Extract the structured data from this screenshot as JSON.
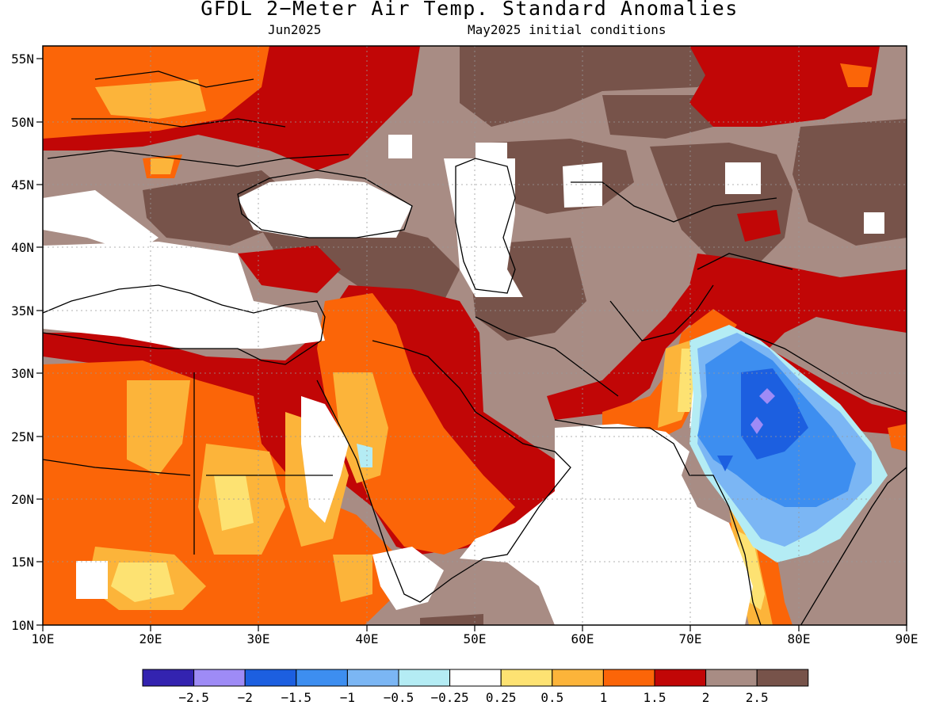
{
  "title": "GFDL 2−Meter Air Temp. Standard Anomalies",
  "subtitle_left": "Jun2025",
  "subtitle_right": "May2025 initial conditions",
  "axes": {
    "lon_ticks": [
      "10E",
      "20E",
      "30E",
      "40E",
      "50E",
      "60E",
      "70E",
      "80E",
      "90E"
    ],
    "lat_ticks": [
      "55N",
      "50N",
      "45N",
      "40N",
      "35N",
      "30N",
      "25N",
      "20N",
      "15N",
      "10N"
    ]
  },
  "colorbar": {
    "colors": [
      "#3323b0",
      "#9e8bf6",
      "#1c5fe0",
      "#3d8ef0",
      "#7bb6f4",
      "#b4ecf4",
      "#ffffff",
      "#fde272",
      "#fcb43a",
      "#fb6508",
      "#c10606",
      "#a88c84",
      "#77534a"
    ],
    "labels": [
      "−2.5",
      "−2",
      "−1.5",
      "−1",
      "−0.5",
      "−0.25",
      "0.25",
      "0.5",
      "1",
      "1.5",
      "2",
      "2.5"
    ]
  },
  "palette": {
    "brown_dark": "#77534a",
    "brown_light": "#a88c84",
    "red": "#c10606",
    "orange": "#fb6508",
    "light_orange": "#fcb43a",
    "yellow": "#fde272",
    "white": "#ffffff",
    "cyan": "#b4ecf4",
    "light_blue": "#7bb6f4",
    "blue": "#3d8ef0",
    "dark_blue": "#1c5fe0",
    "violet": "#9e8bf6"
  }
}
